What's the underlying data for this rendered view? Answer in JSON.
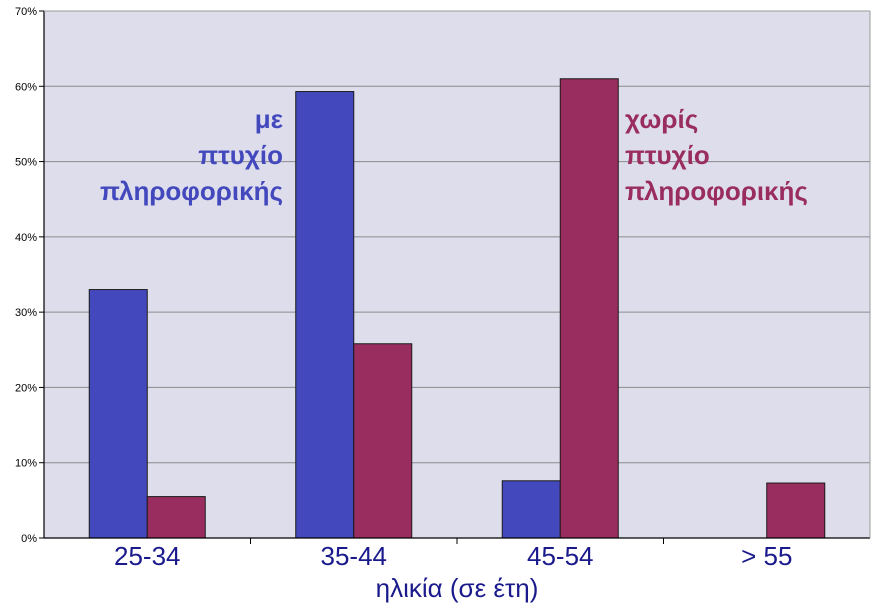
{
  "chart_data": {
    "type": "bar",
    "categories": [
      "25-34",
      "35-44",
      "45-54",
      "> 55"
    ],
    "series": [
      {
        "name": "με πτυχίο πληροφορικής",
        "name_lines": [
          "με",
          "πτυχίο",
          "πληροφορικής"
        ],
        "values": [
          33,
          59.3,
          7.6,
          0
        ],
        "color": "#4349BD"
      },
      {
        "name": "χωρίς πτυχίο πληροφορικής",
        "name_lines": [
          "χωρίς",
          "πτυχίο",
          "πληροφορικής"
        ],
        "values": [
          5.5,
          25.8,
          61,
          7.3
        ],
        "color": "#9A2D5F"
      }
    ],
    "xlabel": "ηλικία (σε έτη)",
    "ylabel": "",
    "ylim": [
      0,
      70
    ],
    "ytick_values": [
      0,
      10,
      20,
      30,
      40,
      50,
      60,
      70
    ],
    "ytick_labels": [
      "0%",
      "10%",
      "20%",
      "30%",
      "40%",
      "50%",
      "60%",
      "70%"
    ],
    "grid": true,
    "legend": "inline labels",
    "colors": {
      "plot_background": "#DDDDEC",
      "gridline": "#8C8C8C",
      "axis_label_text": "#1A1A8C"
    }
  }
}
